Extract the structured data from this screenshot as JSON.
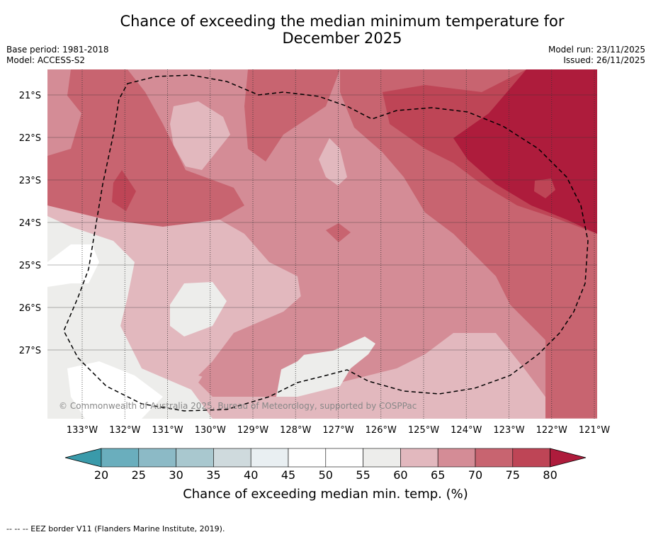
{
  "title_line1": "Chance of exceeding the median minimum temperature for",
  "title_line2": "December 2025",
  "meta": {
    "base_period": "Base period: 1981-2018",
    "model": "Model: ACCESS-S2",
    "model_run": "Model run: 23/11/2025",
    "issued": "Issued: 26/11/2025"
  },
  "map": {
    "lon_labels": [
      "133°W",
      "132°W",
      "131°W",
      "130°W",
      "129°W",
      "128°W",
      "127°W",
      "126°W",
      "125°W",
      "124°W",
      "123°W",
      "122°W",
      "121°W"
    ],
    "lat_labels": [
      "21°S",
      "22°S",
      "23°S",
      "24°S",
      "25°S",
      "26°S",
      "27°S"
    ],
    "copyright": "© Commonwealth of Australia 2025, Bureau of Meteorology, supported by COSPPac"
  },
  "colorbar": {
    "ticks": [
      "20",
      "25",
      "30",
      "35",
      "40",
      "45",
      "50",
      "55",
      "60",
      "65",
      "70",
      "75",
      "80"
    ],
    "label": "Chance of exceeding median min. temp. (%)",
    "colors": [
      "#3a9aaa",
      "#6aaebd",
      "#8cbac6",
      "#a9c8cf",
      "#cfdadd",
      "#e9eff2",
      "#ffffff",
      "#ffffff",
      "#ededeb",
      "#e2b8be",
      "#d48c96",
      "#c86470",
      "#be4556",
      "#ae1c3c"
    ]
  },
  "footer": "--  --  -- EEZ border V11 (Flanders Marine Institute, 2019)."
}
